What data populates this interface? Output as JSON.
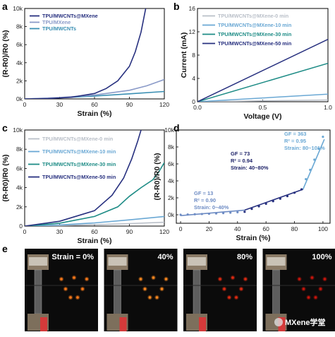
{
  "chart_data": [
    {
      "panel": "a",
      "type": "line",
      "xlabel": "Strain (%)",
      "ylabel": "(R-R0)/R0 (%)",
      "xlim": [
        0,
        120
      ],
      "ylim": [
        0,
        10000
      ],
      "xticks": [
        "0",
        "30",
        "60",
        "90",
        "120"
      ],
      "yticks": [
        "0k",
        "2k",
        "4k",
        "6k",
        "8k",
        "10k"
      ],
      "legend_position": "top-left",
      "series": [
        {
          "name": "TPU/MWCNTs@MXene",
          "color": "#27307f",
          "x": [
            0,
            20,
            40,
            60,
            70,
            80,
            90,
            95,
            100,
            104
          ],
          "y": [
            0,
            40,
            180,
            600,
            1150,
            2000,
            3600,
            5200,
            7400,
            10000
          ]
        },
        {
          "name": "TPU/MXene",
          "color": "#8a9ac8",
          "x": [
            0,
            30,
            60,
            90,
            105,
            120
          ],
          "y": [
            0,
            150,
            420,
            950,
            1450,
            2150
          ]
        },
        {
          "name": "TPU/MWCNTs",
          "color": "#3a8fb3",
          "x": [
            0,
            30,
            60,
            90,
            120
          ],
          "y": [
            0,
            120,
            320,
            560,
            820
          ]
        }
      ]
    },
    {
      "panel": "b",
      "type": "line",
      "xlabel": "Voltage (V)",
      "ylabel": "Current (mA)",
      "xlim": [
        0,
        1.0
      ],
      "ylim": [
        0,
        16
      ],
      "xticks": [
        "0.0",
        "0.5",
        "1.0"
      ],
      "yticks": [
        "0",
        "4",
        "8",
        "12",
        "16"
      ],
      "legend_position": "top-left",
      "series": [
        {
          "name": "TPU/MWCNTs@MXene-0 min",
          "color": "#b9bfc8",
          "x": [
            0,
            1.0
          ],
          "y": [
            0,
            0.3
          ]
        },
        {
          "name": "TPU/MWCNTs@MXene-10 min",
          "color": "#6aa8d4",
          "x": [
            0,
            1.0
          ],
          "y": [
            0,
            1.3
          ]
        },
        {
          "name": "TPU/MWCNTs@MXene-30 min",
          "color": "#1e8c86",
          "x": [
            0,
            1.0
          ],
          "y": [
            0,
            6.6
          ]
        },
        {
          "name": "TPU/MWCNTs@MXene-50 min",
          "color": "#27307f",
          "x": [
            0,
            1.0
          ],
          "y": [
            0,
            10.7
          ]
        }
      ]
    },
    {
      "panel": "c",
      "type": "line",
      "xlabel": "Strain (%)",
      "ylabel": "(R-R0)/R0 (%)",
      "xlim": [
        0,
        120
      ],
      "ylim": [
        0,
        10000
      ],
      "xticks": [
        "0",
        "30",
        "60",
        "90",
        "120"
      ],
      "yticks": [
        "0",
        "2k",
        "4k",
        "6k",
        "8k",
        "10k"
      ],
      "legend_position": "top-left",
      "series": [
        {
          "name": "TPU/MWCNTs@MXene-0 min",
          "color": "#b9bfc8",
          "x": [
            0,
            30,
            60,
            90,
            120
          ],
          "y": [
            0,
            60,
            150,
            260,
            400
          ]
        },
        {
          "name": "TPU/MWCNTs@MXene-10 min",
          "color": "#6aa8d4",
          "x": [
            0,
            30,
            60,
            90,
            120
          ],
          "y": [
            0,
            120,
            330,
            650,
            1000
          ]
        },
        {
          "name": "TPU/MWCNTs@MXene-30 min",
          "color": "#1e8c86",
          "x": [
            0,
            30,
            60,
            80,
            90,
            100,
            110,
            115,
            120
          ],
          "y": [
            0,
            300,
            1000,
            2000,
            3100,
            4000,
            4800,
            5600,
            6600
          ]
        },
        {
          "name": "TPU/MWCNTs@MXene-50 min",
          "color": "#27307f",
          "x": [
            0,
            30,
            60,
            75,
            85,
            92,
            97,
            100
          ],
          "y": [
            0,
            500,
            1600,
            3200,
            5000,
            7000,
            8800,
            10000
          ]
        }
      ]
    },
    {
      "panel": "d",
      "type": "scatter",
      "xlabel": "Strain (%)",
      "ylabel": "(R-R0)/R0 (%)",
      "xlim": [
        -3,
        105
      ],
      "ylim": [
        -1000,
        10000
      ],
      "xticks": [
        "0",
        "20",
        "40",
        "60",
        "80",
        "100"
      ],
      "yticks": [
        "0k",
        "2k",
        "4k",
        "6k",
        "8k",
        "10k"
      ],
      "points": {
        "x": [
          0,
          5,
          10,
          15,
          20,
          25,
          30,
          35,
          40,
          45,
          50,
          55,
          60,
          65,
          70,
          75,
          80,
          85,
          88,
          91,
          94,
          97,
          100
        ],
        "y": [
          0,
          30,
          60,
          90,
          120,
          160,
          200,
          250,
          300,
          350,
          700,
          1000,
          1300,
          1600,
          1900,
          2200,
          2600,
          3000,
          4200,
          5300,
          6500,
          7800,
          9200
        ]
      },
      "fits": [
        {
          "color": "#6e8cc4",
          "x": [
            0,
            45
          ],
          "y": [
            -100,
            550
          ]
        },
        {
          "color": "#27307f",
          "x": [
            45,
            86
          ],
          "y": [
            550,
            3000
          ]
        },
        {
          "color": "#6aa8d4",
          "x": [
            86,
            101
          ],
          "y": [
            3000,
            8900
          ]
        }
      ],
      "annotations": [
        {
          "lines": [
            "GF = 13",
            "R² = 0.90",
            "Strain: 0~40%"
          ],
          "color": "#6e8cc4"
        },
        {
          "lines": [
            "GF = 73",
            "R² = 0.94",
            "Strain: 40~80%"
          ],
          "color": "#1a1f66"
        },
        {
          "lines": [
            "GF = 363",
            "R² = 0.95",
            "Strain: 80~101%"
          ],
          "color": "#6aa8d4"
        }
      ]
    }
  ],
  "panels": {
    "a": "a",
    "b": "b",
    "c": "c",
    "d": "d",
    "e": "e"
  },
  "photos": [
    {
      "label": "Strain = 0%",
      "led_color": "#ff7b1a",
      "led_count": 7
    },
    {
      "label": "40%",
      "led_color": "#ff8a20",
      "led_count": 7
    },
    {
      "label": "80%",
      "led_color": "#e22a12",
      "led_count": 7
    },
    {
      "label": "100%",
      "led_color": "#c9150c",
      "led_count": 7
    }
  ],
  "watermark": "MXene学堂"
}
